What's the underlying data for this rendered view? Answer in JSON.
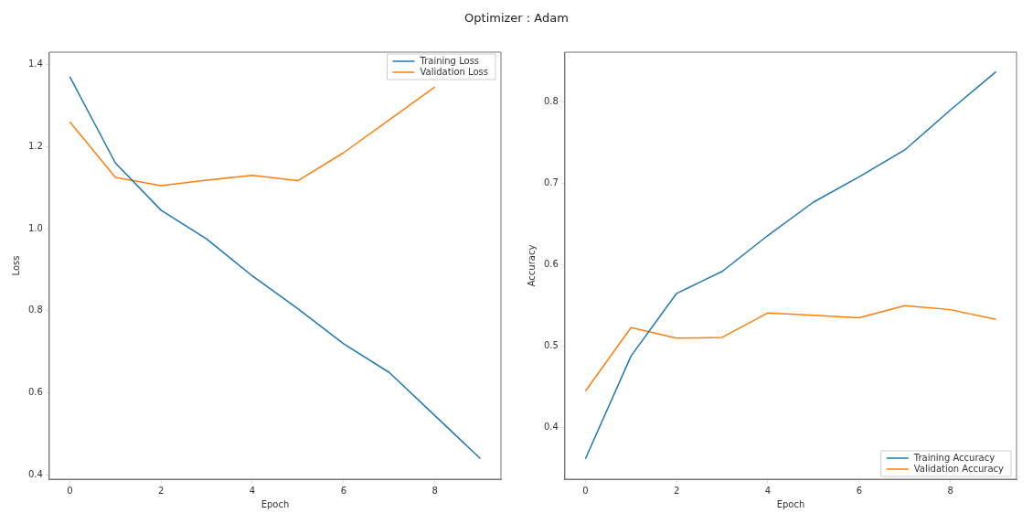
{
  "chart_data": [
    {
      "type": "line",
      "title": "Optimizer : Adam",
      "xlabel": "Epoch",
      "ylabel": "Loss",
      "x": [
        0,
        1,
        2,
        3,
        4,
        5,
        6,
        7,
        8,
        9
      ],
      "xlim": [
        -0.45,
        9.45
      ],
      "xticks": [
        0,
        2,
        4,
        6,
        8
      ],
      "ylim": [
        0.39,
        1.43
      ],
      "yticks": [
        0.4,
        0.6,
        0.8,
        {
          "value": 1,
          "label": "1.0"
        },
        1.2,
        1.4
      ],
      "grid": false,
      "legend": "top right",
      "series": [
        {
          "name": "Training Loss",
          "color": "#1f77b4",
          "values": [
            1.37,
            1.16,
            1.045,
            0.975,
            0.885,
            0.805,
            0.72,
            0.65,
            0.545,
            0.44
          ]
        },
        {
          "name": "Validation Loss",
          "color": "#ff7f0e",
          "values": [
            1.26,
            1.125,
            1.105,
            1.118,
            1.13,
            1.117,
            1.185,
            1.265,
            1.345,
            null
          ]
        }
      ]
    },
    {
      "type": "line",
      "xlabel": "Epoch",
      "ylabel": "Accuracy",
      "x": [
        0,
        1,
        2,
        3,
        4,
        5,
        6,
        7,
        8,
        9
      ],
      "xlim": [
        -0.45,
        9.45
      ],
      "xticks": [
        0,
        2,
        4,
        6,
        8
      ],
      "ylim": [
        0.337,
        0.861
      ],
      "yticks": [
        0.4,
        0.5,
        0.6,
        0.7,
        0.8
      ],
      "grid": false,
      "legend": "bottom right",
      "series": [
        {
          "name": "Training Accuracy",
          "color": "#1f77b4",
          "values": [
            0.362,
            0.488,
            0.565,
            0.592,
            0.636,
            0.677,
            0.708,
            0.741,
            0.79,
            0.837
          ]
        },
        {
          "name": "Validation Accuracy",
          "color": "#ff7f0e",
          "values": [
            0.445,
            0.523,
            0.51,
            0.511,
            0.541,
            0.538,
            0.535,
            0.55,
            0.545,
            0.533
          ]
        }
      ]
    }
  ]
}
